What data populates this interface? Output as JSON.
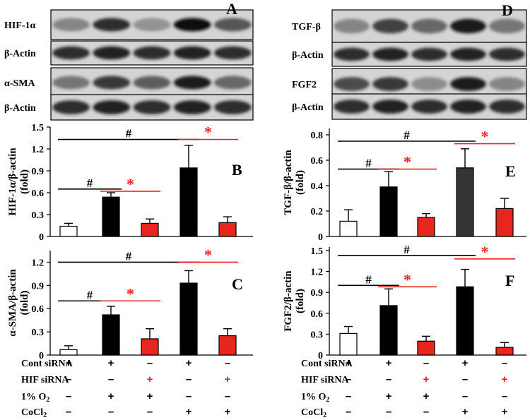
{
  "colors": {
    "black": "#000000",
    "red": "#e8251f",
    "white": "#ffffff",
    "dark_gray": "#333333"
  },
  "blots": [
    {
      "panel": "A",
      "rows": [
        {
          "label": "HIF-1α",
          "bands": [
            0.35,
            0.85,
            0.25,
            1.0,
            0.65
          ]
        },
        {
          "label": "β-Actin",
          "bands": [
            0.85,
            0.9,
            0.85,
            0.9,
            0.85
          ]
        },
        {
          "label": "α-SMA",
          "bands": [
            0.45,
            0.8,
            0.6,
            0.95,
            0.55
          ]
        },
        {
          "label": "β-Actin",
          "bands": [
            0.85,
            0.9,
            0.85,
            0.9,
            0.85
          ]
        }
      ]
    },
    {
      "panel": "D",
      "rows": [
        {
          "label": "TGF-β",
          "bands": [
            0.35,
            0.75,
            0.55,
            0.95,
            0.45
          ]
        },
        {
          "label": "β-Actin",
          "bands": [
            0.85,
            0.9,
            0.85,
            0.9,
            0.85
          ]
        },
        {
          "label": "FGF2",
          "bands": [
            0.7,
            0.8,
            0.3,
            0.95,
            0.35
          ]
        },
        {
          "label": "β-Actin",
          "bands": [
            0.85,
            0.9,
            0.85,
            0.9,
            0.85
          ]
        }
      ]
    }
  ],
  "chart_data": [
    {
      "panel": "B",
      "type": "bar",
      "ylabel_line1": "HIF-1α/β-actin",
      "ylabel_line2": "(fold)",
      "ylim": [
        0,
        1.5
      ],
      "ticks": [
        "0",
        "0.3",
        "0.6",
        "0.9",
        "1.2",
        "1.5"
      ],
      "values": [
        0.14,
        0.54,
        0.18,
        0.94,
        0.19
      ],
      "errors": [
        0.04,
        0.06,
        0.06,
        0.31,
        0.08
      ],
      "fills": [
        "white",
        "black",
        "red",
        "black",
        "red"
      ],
      "annotations": [
        {
          "symbol": "#",
          "from": 0,
          "to": 1,
          "y": 0.65,
          "color": "black"
        },
        {
          "symbol": "*",
          "from": 1,
          "to": 2,
          "y": 0.62,
          "color": "red"
        },
        {
          "symbol": "#",
          "from": 0,
          "to": 3,
          "y": 1.33,
          "color": "black"
        },
        {
          "symbol": "*",
          "from": 3,
          "to": 4,
          "y": 1.33,
          "color": "red"
        }
      ]
    },
    {
      "panel": "C",
      "type": "bar",
      "ylabel_line1": "α-SMA/β-actin",
      "ylabel_line2": "(fold)",
      "ylim": [
        0,
        1.35
      ],
      "ticks": [
        "0",
        "0.3",
        "0.6",
        "0.9",
        "1.2"
      ],
      "values": [
        0.07,
        0.52,
        0.21,
        0.93,
        0.25
      ],
      "errors": [
        0.05,
        0.11,
        0.13,
        0.16,
        0.09
      ],
      "fills": [
        "white",
        "black",
        "red",
        "black",
        "red"
      ],
      "annotations": [
        {
          "symbol": "#",
          "from": 0,
          "to": 1,
          "y": 0.7,
          "color": "black"
        },
        {
          "symbol": "*",
          "from": 1,
          "to": 2,
          "y": 0.7,
          "color": "red"
        },
        {
          "symbol": "#",
          "from": 0,
          "to": 3,
          "y": 1.2,
          "color": "black"
        },
        {
          "symbol": "*",
          "from": 3,
          "to": 4,
          "y": 1.2,
          "color": "red"
        }
      ]
    },
    {
      "panel": "E",
      "type": "bar",
      "ylabel_line1": "TGF-β/β-actin",
      "ylabel_line2": "(fold)",
      "ylim": [
        0,
        0.85
      ],
      "ticks": [
        "0",
        "0.2",
        "0.4",
        "0.6",
        "0.8"
      ],
      "values": [
        0.12,
        0.39,
        0.15,
        0.54,
        0.22
      ],
      "errors": [
        0.09,
        0.12,
        0.03,
        0.15,
        0.08
      ],
      "fills": [
        "white",
        "black",
        "red",
        "dark_gray",
        "red"
      ],
      "annotations": [
        {
          "symbol": "#",
          "from": 0,
          "to": 1,
          "y": 0.53,
          "color": "black"
        },
        {
          "symbol": "*",
          "from": 1,
          "to": 2,
          "y": 0.53,
          "color": "red"
        },
        {
          "symbol": "#",
          "from": 0,
          "to": 3,
          "y": 0.75,
          "color": "black"
        },
        {
          "symbol": "*",
          "from": 3,
          "to": 4,
          "y": 0.73,
          "color": "red"
        }
      ]
    },
    {
      "panel": "F",
      "type": "bar",
      "ylabel_line1": "FGF2/β-actin",
      "ylabel_line2": "(fold)",
      "ylim": [
        0,
        1.55
      ],
      "ticks": [
        "0",
        "0.3",
        "0.6",
        "0.9",
        "1.2",
        "1.5"
      ],
      "values": [
        0.31,
        0.71,
        0.2,
        0.98,
        0.11
      ],
      "errors": [
        0.1,
        0.24,
        0.07,
        0.25,
        0.07
      ],
      "fills": [
        "white",
        "black",
        "red",
        "black",
        "red"
      ],
      "annotations": [
        {
          "symbol": "#",
          "from": 0,
          "to": 1,
          "y": 1.0,
          "color": "black"
        },
        {
          "symbol": "*",
          "from": 1,
          "to": 2,
          "y": 0.98,
          "color": "red"
        },
        {
          "symbol": "#",
          "from": 0,
          "to": 3,
          "y": 1.43,
          "color": "black"
        },
        {
          "symbol": "*",
          "from": 3,
          "to": 4,
          "y": 1.38,
          "color": "red"
        }
      ]
    }
  ],
  "conditions": [
    {
      "label": "Cont siRNA",
      "label_html": "",
      "marks": [
        "+",
        "+",
        "–",
        "+",
        "–"
      ]
    },
    {
      "label": "HIF siRNA",
      "marks": [
        "–",
        "–",
        "+",
        "–",
        "+"
      ],
      "red_plus": true
    },
    {
      "label": "1% O",
      "sub": "2",
      "marks": [
        "–",
        "+",
        "+",
        "–",
        "–"
      ]
    },
    {
      "label": "CoCl",
      "sub": "2",
      "marks": [
        "–",
        "–",
        "–",
        "+",
        "+"
      ]
    }
  ]
}
